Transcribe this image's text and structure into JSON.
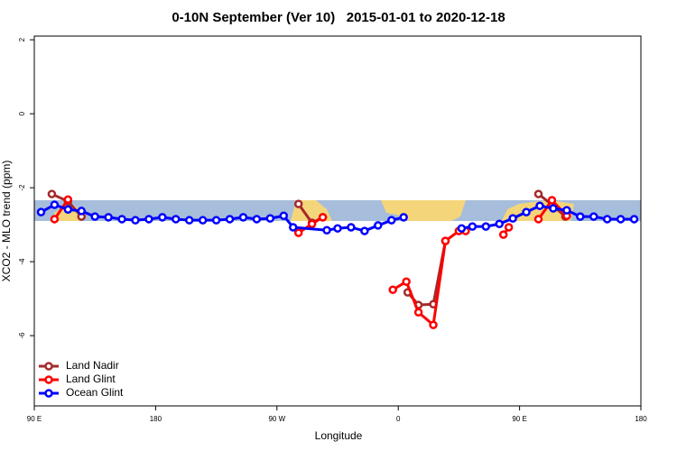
{
  "chart_data": {
    "type": "line",
    "title": "0-10N September (Ver 10)   2015-01-01 to 2020-12-18",
    "x_label": "Longitude",
    "y_label": "XCO2 - MLO trend (ppm)",
    "xlim": [
      90,
      540
    ],
    "ylim": [
      -7.9,
      2.1
    ],
    "xticks": [
      {
        "value": 90,
        "label": "90 E"
      },
      {
        "value": 180,
        "label": "180"
      },
      {
        "value": 270,
        "label": "90 W"
      },
      {
        "value": 360,
        "label": "0"
      },
      {
        "value": 450,
        "label": "90 E"
      },
      {
        "value": 540,
        "label": "180"
      }
    ],
    "yticks": [
      -6,
      -4,
      -2,
      0,
      2
    ],
    "legend": "bottomleft",
    "series": [
      {
        "name": "Land Nadir",
        "color": "#a52a2a",
        "x": [
          103,
          115,
          125,
          200,
          286,
          296,
          304,
          330,
          367,
          375,
          386,
          395,
          430,
          464,
          474,
          484
        ],
        "values": [
          -2.17,
          -2.37,
          -2.78,
          null,
          -2.44,
          -2.95,
          -2.8,
          null,
          -4.83,
          -5.17,
          -5.15,
          -3.44,
          null,
          -2.17,
          -2.46,
          -2.78
        ]
      },
      {
        "name": "Land Glint",
        "color": "#ff0000",
        "x": [
          105,
          115,
          120,
          286,
          296,
          304,
          330,
          356,
          366,
          375,
          386,
          395,
          405,
          410,
          425,
          438,
          442,
          455,
          464,
          474,
          485
        ],
        "values": [
          -2.85,
          -2.32,
          null,
          -3.22,
          -2.98,
          -2.8,
          null,
          -4.76,
          -4.54,
          -5.37,
          -5.71,
          -3.44,
          -3.17,
          -3.17,
          null,
          -3.27,
          -3.07,
          null,
          -2.85,
          -2.34,
          -2.76
        ]
      },
      {
        "name": "Ocean Glint",
        "color": "#0000ff",
        "x": [
          95,
          105,
          115,
          125,
          135,
          145,
          155,
          165,
          175,
          185,
          195,
          205,
          215,
          225,
          235,
          245,
          255,
          265,
          275,
          282,
          307,
          315,
          325,
          335,
          345,
          355,
          364,
          385,
          407,
          415,
          425,
          435,
          445,
          455,
          465,
          475,
          485,
          495,
          505,
          515,
          525,
          535
        ],
        "values": [
          -2.66,
          -2.46,
          -2.59,
          -2.63,
          -2.78,
          -2.8,
          -2.85,
          -2.88,
          -2.85,
          -2.8,
          -2.85,
          -2.88,
          -2.88,
          -2.88,
          -2.85,
          -2.8,
          -2.85,
          -2.83,
          -2.76,
          -3.07,
          -3.15,
          -3.1,
          -3.07,
          -3.17,
          -3.02,
          -2.88,
          -2.8,
          null,
          -3.1,
          -3.05,
          -3.05,
          -2.98,
          -2.83,
          -2.66,
          -2.49,
          -2.56,
          -2.61,
          -2.78,
          -2.78,
          -2.85,
          -2.85,
          -2.85
        ]
      }
    ]
  }
}
